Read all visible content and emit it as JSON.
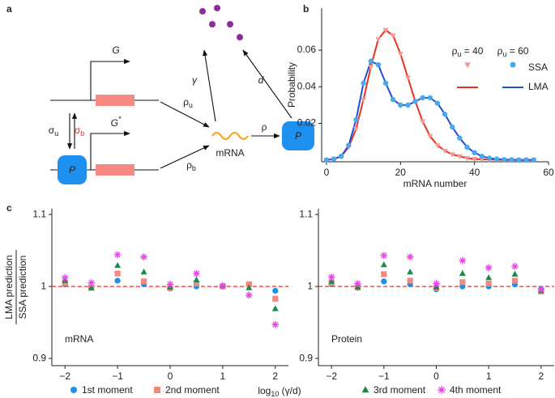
{
  "panel_labels": [
    "a",
    "b",
    "c"
  ],
  "diagram": {
    "gene_on": "G",
    "gene_off": {
      "base": "G",
      "sup": "*"
    },
    "sigma_u": {
      "base": "σ",
      "sub": "u"
    },
    "sigma_b": {
      "base": "σ",
      "sub": "b"
    },
    "protein_bound": "P",
    "rho_u": {
      "base": "ρ",
      "sub": "u"
    },
    "rho_b": {
      "base": "ρ",
      "sub": "b"
    },
    "mrna": "mRNA",
    "gamma": "γ",
    "d": "d",
    "rho": "ρ",
    "protein": "P"
  },
  "chart_data": [
    {
      "type": "line",
      "xlabel": "mRNA number",
      "ylabel": "Probability",
      "x": [
        0,
        2,
        4,
        6,
        8,
        10,
        12,
        14,
        16,
        18,
        20,
        22,
        24,
        26,
        28,
        30,
        32,
        34,
        36,
        38,
        40,
        42,
        44,
        46,
        48,
        50,
        52,
        54,
        56
      ],
      "xlim": [
        -1.3,
        60
      ],
      "xticks": [
        0,
        20,
        40,
        60
      ],
      "ylim": [
        -0.001,
        0.083
      ],
      "yticks": [
        0.02,
        0.04,
        0.06
      ],
      "legend": {
        "columns": [
          {
            "base": "ρ",
            "sub": "u",
            "rest": " = 40"
          },
          {
            "base": "ρ",
            "sub": "u",
            "rest": " = 60"
          }
        ],
        "rows": [
          "SSA",
          "LMA"
        ]
      },
      "series": [
        {
          "mode": "markers",
          "marker": "triangle-down",
          "color": "#f59a92",
          "values": [
            0,
            0.0005,
            0.002,
            0.007,
            0.017,
            0.033,
            0.051,
            0.066,
            0.071,
            0.068,
            0.058,
            0.045,
            0.032,
            0.021,
            0.013,
            0.008,
            0.005,
            0.003,
            0.002,
            0.001,
            0.0005,
            0.0003,
            0.0002,
            0.0001,
            0,
            0,
            0,
            0,
            0
          ]
        },
        {
          "mode": "line",
          "color": "#e8341f",
          "values": [
            0,
            0.0005,
            0.002,
            0.007,
            0.017,
            0.033,
            0.051,
            0.066,
            0.071,
            0.068,
            0.058,
            0.045,
            0.032,
            0.021,
            0.013,
            0.008,
            0.005,
            0.003,
            0.002,
            0.001,
            0.0005,
            0.0003,
            0.0002,
            0.0001,
            0,
            0,
            0,
            0,
            0
          ]
        },
        {
          "mode": "markers",
          "marker": "circle",
          "color": "#4aa8ec",
          "values": [
            0,
            0.0005,
            0.002,
            0.008,
            0.022,
            0.042,
            0.054,
            0.052,
            0.042,
            0.033,
            0.03,
            0.03,
            0.032,
            0.034,
            0.034,
            0.031,
            0.025,
            0.018,
            0.012,
            0.007,
            0.004,
            0.002,
            0.001,
            0.0005,
            0.0002,
            0.0001,
            0,
            0,
            0
          ]
        },
        {
          "mode": "line",
          "color": "#1f4fd8",
          "values": [
            0,
            0.0005,
            0.002,
            0.008,
            0.022,
            0.042,
            0.054,
            0.052,
            0.042,
            0.033,
            0.03,
            0.03,
            0.032,
            0.034,
            0.034,
            0.031,
            0.025,
            0.018,
            0.012,
            0.007,
            0.004,
            0.002,
            0.001,
            0.0005,
            0.0002,
            0.0001,
            0,
            0,
            0
          ]
        }
      ]
    },
    {
      "type": "scatter",
      "annotation": "mRNA",
      "xlabel": {
        "base": "log",
        "sub": "10",
        "rest": " (γ/d)"
      },
      "ylabel": [
        "LMA prediction",
        "SSA prediction"
      ],
      "x": [
        -2,
        -1.5,
        -1,
        -0.5,
        0,
        0.5,
        1,
        1.5,
        2
      ],
      "xlim": [
        -2.25,
        2.25
      ],
      "xticks": [
        {
          "value": -2,
          "label": "−2"
        },
        {
          "value": -1,
          "label": "−1"
        },
        0,
        1,
        2
      ],
      "ylim": [
        0.89,
        1.108
      ],
      "yticks": [
        0.9,
        1,
        1.1
      ],
      "reference_line": {
        "value": 1,
        "color": "#e8341f"
      },
      "series": [
        {
          "name": "1st moment",
          "marker": "circle",
          "color": "#1e8fe6",
          "values": [
            1.003,
            0.998,
            1.008,
            1.003,
            0.997,
            1.0,
            1.0,
            1.002,
            0.994
          ]
        },
        {
          "name": "2nd moment",
          "marker": "square",
          "color": "#f08a80",
          "values": [
            1.005,
            0.998,
            1.018,
            1.007,
            0.998,
            1.004,
            1.0,
            1.003,
            0.983
          ]
        },
        {
          "name": "3rd moment",
          "marker": "triangle",
          "color": "#1a8a4a",
          "values": [
            1.008,
            0.998,
            1.029,
            1.02,
            0.999,
            1.009,
            1.001,
            0.998,
            0.969
          ]
        },
        {
          "name": "4th moment",
          "marker": "star",
          "color": "#ee44ee",
          "values": [
            1.012,
            1.005,
            1.044,
            1.041,
            1.003,
            1.018,
            1.001,
            0.988,
            0.947
          ]
        }
      ]
    },
    {
      "type": "scatter",
      "annotation": "Protein",
      "x": [
        -2,
        -1.5,
        -1,
        -0.5,
        0,
        0.5,
        1,
        1.5,
        2
      ],
      "xlim": [
        -2.25,
        2.25
      ],
      "xticks": [
        {
          "value": -2,
          "label": "−2"
        },
        {
          "value": -1,
          "label": "−1"
        },
        0,
        1,
        2
      ],
      "ylim": [
        0.89,
        1.108
      ],
      "yticks": [
        0.9,
        1,
        1.1
      ],
      "reference_line": {
        "value": 1,
        "color": "#e8341f"
      },
      "series": [
        {
          "marker": "circle",
          "color": "#1e8fe6",
          "values": [
            1.003,
            0.998,
            1.007,
            1.003,
            0.996,
            1.0,
            1.0,
            1.003,
            0.996
          ]
        },
        {
          "marker": "square",
          "color": "#f08a80",
          "values": [
            1.005,
            0.999,
            1.017,
            1.008,
            0.998,
            1.006,
            1.004,
            1.008,
            0.993
          ]
        },
        {
          "marker": "triangle",
          "color": "#1a8a4a",
          "values": [
            1.007,
            0.999,
            1.03,
            1.02,
            0.999,
            1.018,
            1.012,
            1.017,
            0.994
          ]
        },
        {
          "marker": "star",
          "color": "#ee44ee",
          "values": [
            1.013,
            1.004,
            1.043,
            1.041,
            1.004,
            1.036,
            1.026,
            1.028,
            0.996
          ]
        }
      ]
    }
  ]
}
